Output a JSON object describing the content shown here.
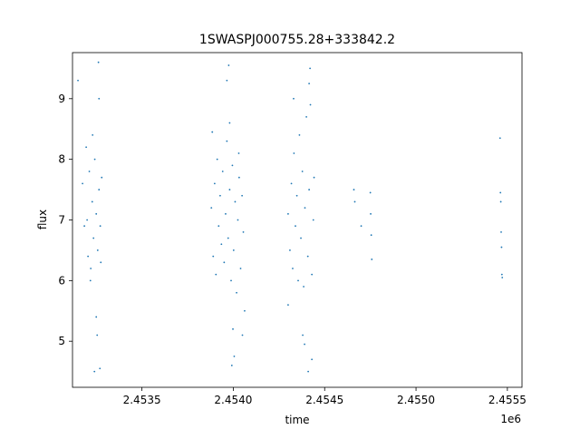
{
  "chart_data": {
    "type": "scatter",
    "title": "1SWASPJ000755.28+333842.2",
    "xlabel": "time",
    "ylabel": "flux",
    "x_offset_label": "1e6",
    "xlim": [
      2453120,
      2455580
    ],
    "ylim": [
      4.24,
      9.76
    ],
    "x_ticks": [
      2453500,
      2454000,
      2454500,
      2455000,
      2455500
    ],
    "x_tick_labels": [
      "2.4535",
      "2.4540",
      "2.4545",
      "2.4550",
      "2.4555"
    ],
    "y_ticks": [
      5,
      6,
      7,
      8,
      9
    ],
    "y_tick_labels": [
      "5",
      "6",
      "7",
      "8",
      "9"
    ],
    "point_color": "#1f77b4",
    "grid": false,
    "series": [
      {
        "points": [
          [
            2453150,
            9.3
          ],
          [
            2453175,
            7.6
          ],
          [
            2453185,
            6.9
          ],
          [
            2453195,
            8.2
          ],
          [
            2453200,
            7.0
          ],
          [
            2453205,
            6.4
          ],
          [
            2453212,
            7.8
          ],
          [
            2453220,
            6.2
          ],
          [
            2453228,
            7.3
          ],
          [
            2453235,
            6.7
          ],
          [
            2453242,
            8.0
          ],
          [
            2453250,
            7.1
          ],
          [
            2453258,
            6.5
          ],
          [
            2453265,
            7.5
          ],
          [
            2453272,
            6.9
          ],
          [
            2453280,
            7.7
          ],
          [
            2453250,
            5.4
          ],
          [
            2453265,
            9.0
          ],
          [
            2453240,
            4.5
          ],
          [
            2453270,
            4.55
          ],
          [
            2453255,
            5.1
          ],
          [
            2453262,
            9.6
          ],
          [
            2453230,
            8.4
          ],
          [
            2453218,
            6.0
          ],
          [
            2453275,
            6.3
          ],
          [
            2453880,
            7.2
          ],
          [
            2453890,
            6.4
          ],
          [
            2453898,
            7.6
          ],
          [
            2453905,
            6.1
          ],
          [
            2453912,
            8.0
          ],
          [
            2453920,
            6.9
          ],
          [
            2453928,
            7.4
          ],
          [
            2453935,
            6.6
          ],
          [
            2453942,
            7.8
          ],
          [
            2453950,
            6.3
          ],
          [
            2453958,
            7.1
          ],
          [
            2453965,
            8.3
          ],
          [
            2453972,
            6.7
          ],
          [
            2453980,
            7.5
          ],
          [
            2453988,
            6.0
          ],
          [
            2453995,
            7.9
          ],
          [
            2454002,
            6.5
          ],
          [
            2454010,
            7.3
          ],
          [
            2454018,
            5.8
          ],
          [
            2454025,
            7.0
          ],
          [
            2454032,
            7.7
          ],
          [
            2454040,
            6.2
          ],
          [
            2454048,
            7.4
          ],
          [
            2454055,
            6.8
          ],
          [
            2454062,
            5.5
          ],
          [
            2453965,
            9.3
          ],
          [
            2453975,
            9.55
          ],
          [
            2453992,
            4.6
          ],
          [
            2454005,
            4.75
          ],
          [
            2453998,
            5.2
          ],
          [
            2454050,
            5.1
          ],
          [
            2453885,
            8.45
          ],
          [
            2453980,
            8.6
          ],
          [
            2454030,
            8.1
          ],
          [
            2454300,
            7.1
          ],
          [
            2454310,
            6.5
          ],
          [
            2454318,
            7.6
          ],
          [
            2454325,
            6.2
          ],
          [
            2454332,
            8.1
          ],
          [
            2454340,
            6.9
          ],
          [
            2454348,
            7.4
          ],
          [
            2454355,
            6.0
          ],
          [
            2454362,
            8.4
          ],
          [
            2454370,
            6.7
          ],
          [
            2454378,
            7.8
          ],
          [
            2454385,
            5.9
          ],
          [
            2454392,
            7.2
          ],
          [
            2454400,
            8.7
          ],
          [
            2454408,
            6.4
          ],
          [
            2454415,
            7.5
          ],
          [
            2454422,
            8.9
          ],
          [
            2454430,
            6.1
          ],
          [
            2454438,
            7.0
          ],
          [
            2454442,
            7.7
          ],
          [
            2454420,
            9.5
          ],
          [
            2454415,
            9.25
          ],
          [
            2454380,
            5.1
          ],
          [
            2454410,
            4.5
          ],
          [
            2454430,
            4.7
          ],
          [
            2454300,
            5.6
          ],
          [
            2454330,
            9.0
          ],
          [
            2454390,
            4.95
          ],
          [
            2454660,
            7.5
          ],
          [
            2454665,
            7.3
          ],
          [
            2454750,
            7.45
          ],
          [
            2454752,
            7.1
          ],
          [
            2454755,
            6.75
          ],
          [
            2454758,
            6.35
          ],
          [
            2454700,
            6.9
          ],
          [
            2455460,
            8.35
          ],
          [
            2455462,
            7.45
          ],
          [
            2455464,
            7.3
          ],
          [
            2455466,
            6.8
          ],
          [
            2455468,
            6.55
          ],
          [
            2455470,
            6.1
          ],
          [
            2455472,
            6.05
          ]
        ]
      }
    ]
  }
}
